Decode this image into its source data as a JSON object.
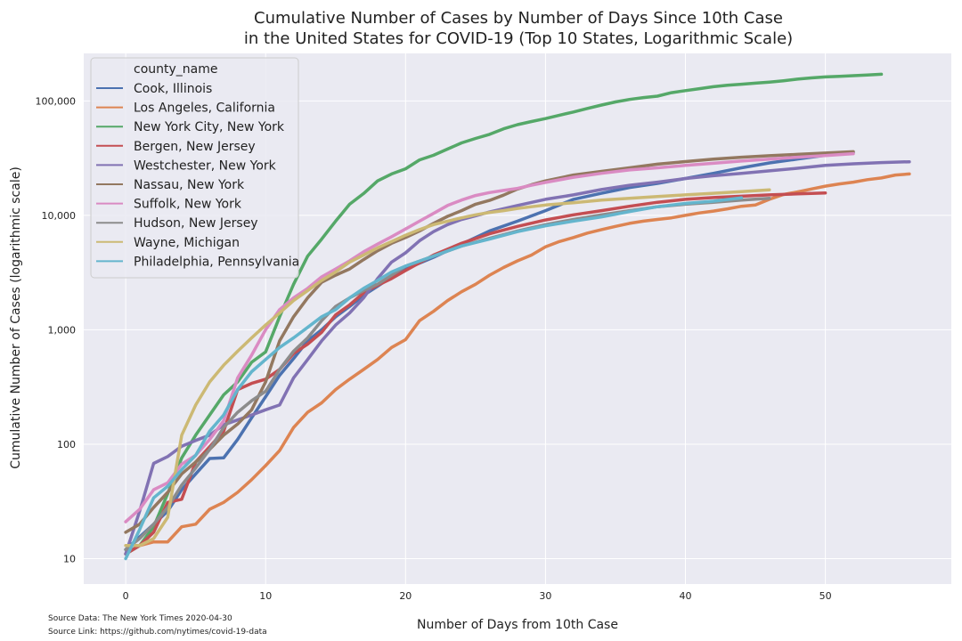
{
  "chart_data": {
    "type": "line",
    "title_line1": "Cumulative Number of Cases by Number of Days Since 10th Case",
    "title_line2": "in the United States for COVID-19 (Top 10 States, Logarithmic Scale)",
    "xlabel": "Number of Days from 10th Case",
    "ylabel": "Cumulative Number of Cases (logarithmic scale)",
    "xlim": [
      -3,
      59
    ],
    "ylim": [
      6,
      260000
    ],
    "yscale": "log",
    "grid": true,
    "legend_placement": "top-left",
    "legend_title": "county_name",
    "x_ticks": [
      0,
      10,
      20,
      30,
      40,
      50
    ],
    "x_tick_labels": [
      "0",
      "10",
      "20",
      "30",
      "40",
      "50"
    ],
    "y_ticks": [
      10,
      100,
      1000,
      10000,
      100000
    ],
    "y_tick_labels": [
      "10",
      "100",
      "1,000",
      "10,000",
      "100,000"
    ],
    "series": [
      {
        "name": "Cook, Illinois",
        "color": "#4c72b0",
        "x": [
          0,
          2,
          3,
          4,
          5,
          6,
          7,
          8,
          9,
          10,
          11,
          12,
          13,
          14,
          15,
          16,
          17,
          18,
          19,
          20,
          22,
          24,
          26,
          28,
          30,
          32,
          34,
          36,
          38,
          40,
          42,
          44,
          46,
          48,
          50,
          52
        ],
        "y": [
          12,
          20,
          26,
          40,
          55,
          75,
          76,
          110,
          170,
          260,
          400,
          560,
          800,
          1000,
          1300,
          1600,
          2000,
          2400,
          2900,
          3400,
          4300,
          5600,
          7300,
          8900,
          11000,
          13800,
          15600,
          17500,
          19000,
          21000,
          23300,
          26000,
          28700,
          31000,
          33500,
          35500
        ]
      },
      {
        "name": "Los Angeles, California",
        "color": "#dd8452",
        "x": [
          0,
          1,
          2,
          3,
          4,
          5,
          6,
          7,
          8,
          9,
          10,
          11,
          12,
          13,
          14,
          15,
          16,
          17,
          18,
          19,
          20,
          21,
          22,
          23,
          24,
          25,
          26,
          27,
          28,
          29,
          30,
          31,
          32,
          33,
          34,
          35,
          36,
          37,
          38,
          39,
          40,
          41,
          42,
          43,
          44,
          45,
          46,
          47,
          48,
          49,
          50,
          51,
          52,
          53,
          54,
          55,
          56
        ],
        "y": [
          11,
          13,
          14,
          14,
          19,
          20,
          27,
          31,
          38,
          49,
          65,
          88,
          140,
          190,
          230,
          300,
          370,
          450,
          550,
          700,
          820,
          1200,
          1450,
          1800,
          2150,
          2500,
          3000,
          3500,
          4000,
          4500,
          5300,
          5900,
          6400,
          7000,
          7500,
          8000,
          8500,
          8900,
          9200,
          9500,
          10000,
          10500,
          10900,
          11400,
          12000,
          12300,
          13800,
          15200,
          16000,
          17000,
          18000,
          18800,
          19500,
          20500,
          21200,
          22500,
          23000
        ]
      },
      {
        "name": "New York City, New York",
        "color": "#55a868",
        "x": [
          0,
          1,
          2,
          3,
          4,
          5,
          6,
          7,
          8,
          9,
          10,
          11,
          12,
          13,
          14,
          15,
          16,
          17,
          18,
          19,
          20,
          21,
          22,
          23,
          24,
          25,
          26,
          27,
          28,
          29,
          30,
          31,
          32,
          33,
          34,
          35,
          36,
          37,
          38,
          39,
          40,
          41,
          42,
          43,
          44,
          45,
          46,
          47,
          48,
          49,
          50,
          51,
          52,
          53,
          54
        ],
        "y": [
          11,
          13,
          19,
          37,
          76,
          120,
          180,
          270,
          350,
          520,
          640,
          1300,
          2500,
          4400,
          6200,
          8900,
          12500,
          15500,
          20000,
          23000,
          25500,
          30500,
          33500,
          38000,
          43000,
          47000,
          51000,
          57000,
          62000,
          66000,
          70000,
          75000,
          80000,
          86000,
          92000,
          98000,
          103000,
          107000,
          110000,
          118000,
          123000,
          128000,
          133000,
          137000,
          140000,
          143000,
          146000,
          150000,
          155000,
          159000,
          162000,
          164000,
          166000,
          168500,
          171000
        ]
      },
      {
        "name": "Bergen, New Jersey",
        "color": "#c44e52",
        "x": [
          0,
          1,
          2,
          3,
          4,
          5,
          6,
          7,
          8,
          9,
          10,
          11,
          12,
          13,
          14,
          15,
          16,
          17,
          18,
          19,
          20,
          22,
          24,
          26,
          28,
          30,
          32,
          34,
          36,
          38,
          40,
          42,
          44,
          46,
          48,
          50
        ],
        "y": [
          11,
          13,
          17,
          31,
          33,
          70,
          95,
          130,
          300,
          340,
          370,
          450,
          620,
          750,
          950,
          1350,
          1650,
          2100,
          2450,
          2800,
          3300,
          4500,
          5700,
          6900,
          8000,
          9100,
          10100,
          11000,
          12000,
          13000,
          13800,
          14300,
          14700,
          15100,
          15400,
          15700
        ]
      },
      {
        "name": "Westchester, New York",
        "color": "#8172b3",
        "x": [
          0,
          1,
          2,
          3,
          4,
          5,
          6,
          7,
          8,
          9,
          10,
          11,
          12,
          13,
          14,
          15,
          16,
          17,
          18,
          19,
          20,
          21,
          22,
          23,
          24,
          25,
          26,
          28,
          30,
          32,
          34,
          36,
          38,
          40,
          42,
          44,
          46,
          48,
          50,
          52,
          54,
          56
        ],
        "y": [
          11,
          26,
          68,
          78,
          96,
          108,
          120,
          148,
          163,
          180,
          200,
          220,
          380,
          550,
          800,
          1100,
          1400,
          1900,
          2800,
          3900,
          4700,
          6000,
          7200,
          8300,
          9200,
          9900,
          10700,
          12200,
          13800,
          15100,
          16800,
          18300,
          19500,
          21000,
          22200,
          23300,
          24500,
          25800,
          27300,
          28200,
          28900,
          29400
        ]
      },
      {
        "name": "Nassau, New York",
        "color": "#937860",
        "x": [
          0,
          1,
          2,
          3,
          4,
          5,
          6,
          7,
          8,
          9,
          10,
          11,
          12,
          13,
          14,
          15,
          16,
          17,
          18,
          19,
          20,
          21,
          22,
          23,
          24,
          25,
          26,
          27,
          28,
          29,
          30,
          32,
          34,
          36,
          38,
          40,
          42,
          44,
          46,
          48,
          50,
          52
        ],
        "y": [
          17,
          20,
          28,
          38,
          55,
          70,
          90,
          120,
          150,
          200,
          350,
          800,
          1300,
          1900,
          2600,
          3000,
          3400,
          4100,
          4900,
          5700,
          6400,
          7300,
          8500,
          9800,
          11000,
          12500,
          13500,
          15000,
          17000,
          18500,
          20000,
          22500,
          24200,
          26000,
          28000,
          29500,
          31000,
          32200,
          33200,
          34100,
          35000,
          36000
        ]
      },
      {
        "name": "Suffolk, New York",
        "color": "#da8bc3",
        "x": [
          0,
          1,
          2,
          3,
          4,
          5,
          6,
          7,
          8,
          9,
          10,
          11,
          12,
          13,
          14,
          15,
          16,
          17,
          18,
          19,
          20,
          21,
          22,
          23,
          24,
          25,
          26,
          27,
          28,
          29,
          30,
          32,
          34,
          36,
          38,
          40,
          42,
          44,
          46,
          48,
          50,
          52
        ],
        "y": [
          21,
          27,
          40,
          46,
          67,
          80,
          110,
          160,
          380,
          600,
          1000,
          1500,
          1900,
          2300,
          2900,
          3400,
          4000,
          4800,
          5600,
          6500,
          7600,
          8900,
          10400,
          12200,
          13600,
          14900,
          15800,
          16500,
          17200,
          18300,
          19400,
          21500,
          23300,
          24900,
          26000,
          27300,
          28500,
          29800,
          31000,
          32200,
          33300,
          34600
        ]
      },
      {
        "name": "Hudson, New Jersey",
        "color": "#8c8c8c",
        "x": [
          0,
          1,
          2,
          3,
          4,
          5,
          6,
          7,
          8,
          9,
          10,
          11,
          12,
          13,
          14,
          15,
          16,
          17,
          18,
          19,
          20,
          22,
          24,
          26,
          28,
          30,
          32,
          34,
          36,
          38,
          40,
          42,
          44,
          46
        ],
        "y": [
          12,
          15,
          20,
          28,
          44,
          62,
          90,
          140,
          190,
          240,
          290,
          450,
          650,
          850,
          1200,
          1600,
          1900,
          2200,
          2500,
          3000,
          3600,
          4400,
          5400,
          6300,
          7300,
          8300,
          9200,
          10100,
          11000,
          11900,
          12500,
          13000,
          13600,
          14100
        ]
      },
      {
        "name": "Wayne, Michigan",
        "color": "#ccb974",
        "x": [
          0,
          1,
          2,
          3,
          4,
          5,
          6,
          7,
          8,
          9,
          10,
          11,
          12,
          13,
          14,
          15,
          16,
          17,
          18,
          19,
          20,
          21,
          22,
          23,
          24,
          25,
          26,
          27,
          28,
          29,
          30,
          32,
          34,
          36,
          38,
          40,
          42,
          44,
          46
        ],
        "y": [
          13,
          13,
          15,
          23,
          120,
          220,
          350,
          490,
          650,
          850,
          1100,
          1400,
          1800,
          2200,
          2700,
          3200,
          3900,
          4500,
          5200,
          5900,
          6700,
          7500,
          8300,
          8900,
          9500,
          10100,
          10600,
          11000,
          11500,
          11900,
          12300,
          12900,
          13600,
          14100,
          14600,
          15100,
          15600,
          16100,
          16700
        ]
      },
      {
        "name": "Philadelphia, Pennsylvania",
        "color": "#64b5cd",
        "x": [
          0,
          1,
          2,
          3,
          4,
          5,
          6,
          7,
          8,
          9,
          10,
          11,
          12,
          13,
          14,
          15,
          16,
          17,
          18,
          19,
          20,
          22,
          24,
          26,
          28,
          30,
          32,
          34,
          36,
          38,
          40,
          42,
          44
        ],
        "y": [
          10,
          18,
          34,
          43,
          60,
          80,
          130,
          180,
          300,
          430,
          550,
          700,
          850,
          1050,
          1300,
          1500,
          1900,
          2300,
          2700,
          3200,
          3600,
          4400,
          5400,
          6200,
          7200,
          8100,
          8900,
          9700,
          10800,
          11900,
          12700,
          13300,
          14200
        ]
      }
    ],
    "annotations": [
      "Source Data: The New York Times 2020-04-30",
      "Source Link: https://github.com/nytimes/covid-19-data"
    ]
  }
}
